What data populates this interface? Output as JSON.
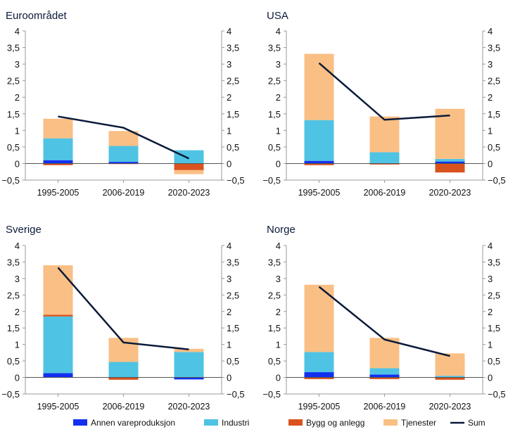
{
  "chart_data": {
    "type": "bar",
    "stacked": true,
    "categories": [
      "1995-2005",
      "2006-2019",
      "2020-2023"
    ],
    "ylim": [
      -0.5,
      4
    ],
    "yticks": [
      "4",
      "3,5",
      "3",
      "2,5",
      "2",
      "1,5",
      "1",
      "0,5",
      "0",
      "−0,5"
    ],
    "ytick_values": [
      4,
      3.5,
      3,
      2.5,
      2,
      1.5,
      1,
      0.5,
      0,
      -0.5
    ],
    "legend_position": "bottom",
    "legend": [
      {
        "name": "Annen vareproduksjon",
        "color": "#1230f0",
        "kind": "bar"
      },
      {
        "name": "Industri",
        "color": "#4fc3e3",
        "kind": "bar"
      },
      {
        "name": "Bygg og anlegg",
        "color": "#d9531e",
        "kind": "bar"
      },
      {
        "name": "Tjenester",
        "color": "#f9bf85",
        "kind": "bar"
      },
      {
        "name": "Sum",
        "color": "#0a1a3a",
        "kind": "line"
      }
    ],
    "panels": [
      {
        "title": "Euroområdet",
        "series": {
          "Annen vareproduksjon": [
            0.1,
            0.05,
            0.01
          ],
          "Industri": [
            0.66,
            0.48,
            0.39
          ],
          "Bygg og anlegg": [
            -0.05,
            -0.01,
            -0.2
          ],
          "Tjenester": [
            0.59,
            0.45,
            -0.12
          ]
        },
        "sum": [
          1.42,
          1.08,
          0.15
        ]
      },
      {
        "title": "USA",
        "series": {
          "Annen vareproduksjon": [
            0.08,
            0.01,
            0.06
          ],
          "Industri": [
            1.23,
            0.33,
            0.08
          ],
          "Bygg og anlegg": [
            -0.05,
            -0.03,
            -0.27
          ],
          "Tjenester": [
            2.0,
            1.08,
            1.51
          ]
        },
        "sum": [
          3.03,
          1.32,
          1.45
        ]
      },
      {
        "title": "Sverige",
        "series": {
          "Annen vareproduksjon": [
            0.13,
            0.0,
            -0.06
          ],
          "Industri": [
            1.72,
            0.47,
            0.77
          ],
          "Bygg og anlegg": [
            0.05,
            -0.07,
            0.0
          ],
          "Tjenester": [
            1.5,
            0.73,
            0.1
          ]
        },
        "sum": [
          3.33,
          1.06,
          0.85
        ]
      },
      {
        "title": "Norge",
        "series": {
          "Annen vareproduksjon": [
            0.16,
            0.09,
            0.0
          ],
          "Industri": [
            0.61,
            0.19,
            0.05
          ],
          "Bygg og anlegg": [
            -0.05,
            -0.05,
            -0.07
          ],
          "Tjenester": [
            2.04,
            0.92,
            0.68
          ]
        },
        "sum": [
          2.75,
          1.15,
          0.65
        ]
      }
    ]
  }
}
